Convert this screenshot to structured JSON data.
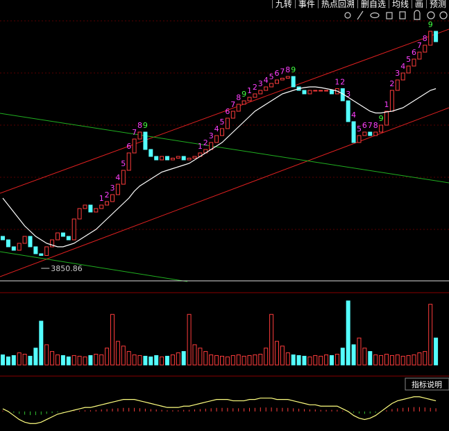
{
  "toolbar": {
    "buttons": [
      "九转",
      "事件",
      "热点回溯",
      "删自选",
      "均线",
      "画",
      "预测"
    ]
  },
  "chart_data": {
    "type": "candlestick",
    "low_label": "3850.86",
    "open": [
      3910,
      3900,
      3880,
      3870,
      3890,
      3910,
      3880,
      3860,
      3855,
      3880,
      3900,
      3920,
      3910,
      3900,
      3960,
      3990,
      4000,
      3980,
      3990,
      4000,
      4010,
      4030,
      4060,
      4100,
      4150,
      4190,
      4210,
      4160,
      4140,
      4130,
      4140,
      4130,
      4135,
      4140,
      4130,
      4135,
      4140,
      4150,
      4160,
      4180,
      4200,
      4220,
      4250,
      4270,
      4290,
      4300,
      4310,
      4320,
      4330,
      4340,
      4350,
      4360,
      4365,
      4370,
      4340,
      4330,
      4320,
      4330,
      4330,
      4330,
      4330,
      4320,
      4335,
      4300,
      4240,
      4180,
      4200,
      4210,
      4200,
      4210,
      4230,
      4270,
      4330,
      4360,
      4380,
      4400,
      4420,
      4440,
      4460,
      4500
    ],
    "close": [
      3900,
      3880,
      3870,
      3890,
      3910,
      3880,
      3860,
      3855,
      3880,
      3900,
      3920,
      3910,
      3900,
      3960,
      3990,
      4000,
      3980,
      3990,
      4000,
      4010,
      4030,
      4060,
      4100,
      4150,
      4190,
      4210,
      4160,
      4140,
      4130,
      4140,
      4130,
      4135,
      4140,
      4130,
      4135,
      4140,
      4150,
      4160,
      4180,
      4200,
      4220,
      4250,
      4270,
      4290,
      4300,
      4310,
      4320,
      4330,
      4340,
      4350,
      4360,
      4365,
      4370,
      4340,
      4330,
      4320,
      4330,
      4330,
      4330,
      4330,
      4320,
      4335,
      4300,
      4240,
      4180,
      4200,
      4210,
      4200,
      4210,
      4230,
      4270,
      4330,
      4360,
      4380,
      4400,
      4420,
      4440,
      4460,
      4500,
      4470
    ],
    "ma": [
      4020,
      4000,
      3980,
      3960,
      3940,
      3925,
      3910,
      3900,
      3890,
      3885,
      3880,
      3880,
      3885,
      3890,
      3900,
      3910,
      3920,
      3930,
      3945,
      3960,
      3975,
      3990,
      4005,
      4020,
      4040,
      4055,
      4065,
      4075,
      4085,
      4095,
      4100,
      4105,
      4110,
      4115,
      4120,
      4130,
      4140,
      4150,
      4160,
      4170,
      4180,
      4195,
      4210,
      4225,
      4240,
      4255,
      4270,
      4280,
      4290,
      4300,
      4310,
      4320,
      4325,
      4330,
      4335,
      4338,
      4340,
      4340,
      4338,
      4335,
      4332,
      4328,
      4320,
      4310,
      4300,
      4290,
      4280,
      4270,
      4265,
      4265,
      4268,
      4270,
      4275,
      4280,
      4290,
      4300,
      4310,
      4320,
      4330,
      4335
    ],
    "td_counts": [
      null,
      null,
      null,
      null,
      null,
      null,
      null,
      null,
      null,
      null,
      null,
      null,
      null,
      null,
      null,
      null,
      null,
      null,
      "1",
      "2",
      "3",
      "4",
      "5",
      "6",
      "7",
      "8",
      "9",
      null,
      null,
      null,
      null,
      null,
      null,
      null,
      null,
      null,
      "1",
      "2",
      "3",
      "4",
      "5",
      "6",
      "7",
      "8",
      "9",
      "1",
      "2",
      "3",
      "4",
      "5",
      "6",
      "7",
      "8",
      "9",
      null,
      null,
      null,
      null,
      null,
      null,
      null,
      "1",
      "2",
      "3",
      "4",
      "5",
      "6",
      "7",
      "8",
      "9",
      "1",
      "2",
      "3",
      "4",
      "5",
      "6",
      "7",
      "8",
      "9",
      null
    ],
    "ylim": [
      3790,
      4530
    ],
    "volume": [
      15,
      12,
      14,
      18,
      16,
      13,
      25,
      65,
      30,
      20,
      15,
      14,
      12,
      14,
      13,
      12,
      14,
      16,
      15,
      25,
      75,
      35,
      28,
      20,
      15,
      14,
      13,
      12,
      14,
      12,
      13,
      15,
      18,
      20,
      75,
      30,
      25,
      20,
      15,
      14,
      13,
      12,
      14,
      15,
      13,
      14,
      15,
      16,
      25,
      75,
      35,
      28,
      18,
      15,
      14,
      13,
      12,
      14,
      13,
      15,
      14,
      16,
      25,
      95,
      30,
      40,
      25,
      20,
      15,
      14,
      16,
      14,
      15,
      13,
      14,
      15,
      18,
      20,
      90,
      40
    ],
    "volume_lim": [
      0,
      100
    ],
    "dif": [
      2,
      0,
      -3,
      -6,
      -8,
      -9,
      -9,
      -8,
      -6,
      -4,
      -2,
      -1,
      0,
      1,
      2,
      3,
      3,
      4,
      5,
      6,
      7,
      8,
      9,
      9,
      9,
      8,
      7,
      6,
      5,
      4,
      3,
      3,
      3,
      4,
      4,
      5,
      6,
      7,
      8,
      9,
      9,
      9,
      8,
      8,
      8,
      9,
      9,
      10,
      10,
      10,
      9,
      9,
      9,
      8,
      7,
      6,
      5,
      5,
      4,
      4,
      4,
      4,
      2,
      0,
      -3,
      -5,
      -6,
      -5,
      -3,
      0,
      3,
      6,
      8,
      9,
      10,
      11,
      11,
      10,
      9,
      8
    ],
    "dif_lim": [
      -12,
      14
    ],
    "indicator_button": "指标说明"
  }
}
